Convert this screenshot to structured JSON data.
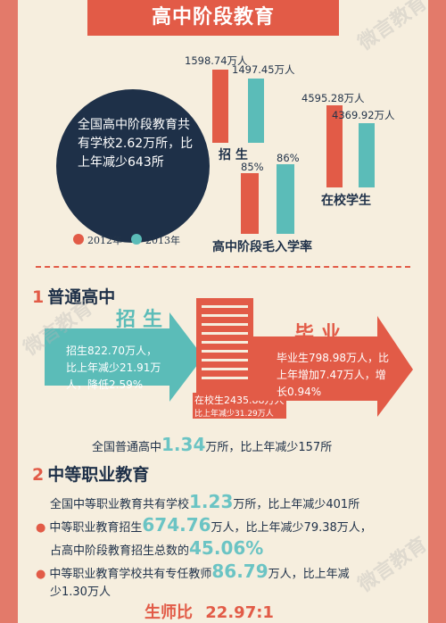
{
  "title": "高中阶段教育",
  "summary_text": "全国高中阶段教育共有学校2.62万所，比上年减少643所",
  "legend": {
    "year_a": "2012年",
    "year_b": "2013年",
    "color_a": "#e25b47",
    "color_b": "#5bbcb8"
  },
  "enrollment": {
    "label": "招 生",
    "v2012": "1598.74万人",
    "v2013": "1497.45万人",
    "n2012": 1598.74,
    "n2013": 1497.45
  },
  "in_school": {
    "label": "在校学生",
    "v2012": "4595.28万人",
    "v2013": "4369.92万人",
    "n2012": 4595.28,
    "n2013": 4369.92
  },
  "gross_rate": {
    "label": "高中阶段毛入学率",
    "v2012": "85%",
    "v2013": "86%",
    "n2012": 85,
    "n2013": 86
  },
  "section1": {
    "num": "1",
    "title": "普通高中",
    "enroll_title": "招生",
    "enroll_text": "招生822.70万人，比上年减少21.91万人，降低2.59%",
    "grad_title": "毕业",
    "grad_text": "毕业生798.98万人，比上年增加7.47万人，增长0.94%",
    "school_text1": "在校生2435.88万人",
    "school_text2": "比上年减少31.29万人",
    "total_pre": "全国普通高中",
    "total_big": "1.34",
    "total_post": "万所，比上年减少157所"
  },
  "section2": {
    "num": "2",
    "title": "中等职业教育",
    "l1_pre": "全国中等职业教育共有学校",
    "l1_big": "1.23",
    "l1_post": "万所，比上年减少401所",
    "l2_pre": "中等职业教育招生",
    "l2_big": "674.76",
    "l2_post": "万人，比上年减少79.38万人，",
    "l3_pre": "占高中阶段教育招生总数的",
    "l3_big": "45.06%",
    "l4_pre": "中等职业教育学校共有专任教师",
    "l4_big": "86.79",
    "l4_post": "万人，比上年减",
    "l5": "少1.30万人",
    "ratio_label": "生师比",
    "ratio_value": "22.97:1"
  },
  "watermark": "微言教育"
}
